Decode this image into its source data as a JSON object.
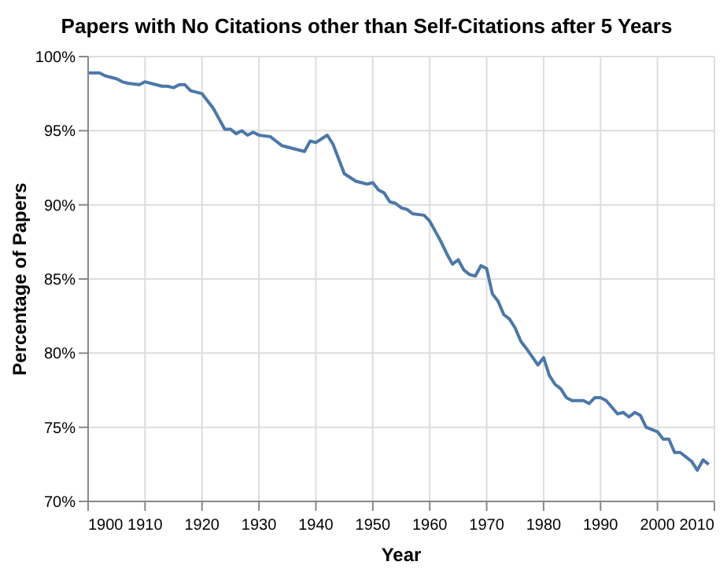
{
  "chart_data": {
    "type": "line",
    "title": "Papers with No Citations other than Self-Citations after 5 Years",
    "xlabel": "Year",
    "ylabel": "Percentage of Papers",
    "x": [
      1900,
      1902,
      1903,
      1905,
      1906,
      1907,
      1909,
      1910,
      1911,
      1913,
      1914,
      1915,
      1916,
      1917,
      1918,
      1920,
      1922,
      1924,
      1925,
      1926,
      1927,
      1928,
      1929,
      1930,
      1932,
      1933,
      1934,
      1936,
      1938,
      1939,
      1940,
      1942,
      1943,
      1945,
      1947,
      1949,
      1950,
      1951,
      1952,
      1953,
      1954,
      1955,
      1956,
      1957,
      1959,
      1960,
      1961,
      1962,
      1963,
      1964,
      1965,
      1966,
      1967,
      1968,
      1969,
      1970,
      1971,
      1972,
      1973,
      1974,
      1975,
      1976,
      1977,
      1979,
      1980,
      1981,
      1982,
      1983,
      1984,
      1985,
      1987,
      1988,
      1989,
      1990,
      1991,
      1993,
      1994,
      1995,
      1996,
      1997,
      1998,
      2000,
      2001,
      2002,
      2003,
      2004,
      2005,
      2006,
      2007,
      2008,
      2009
    ],
    "series": [
      {
        "color": "#4c78a8",
        "values": [
          98.9,
          98.9,
          98.7,
          98.5,
          98.3,
          98.2,
          98.1,
          98.3,
          98.2,
          98.0,
          98.0,
          97.9,
          98.1,
          98.1,
          97.7,
          97.5,
          96.5,
          95.1,
          95.1,
          94.8,
          95.0,
          94.7,
          94.9,
          94.7,
          94.6,
          94.3,
          94.0,
          93.8,
          93.6,
          94.3,
          94.2,
          94.7,
          94.1,
          92.1,
          91.6,
          91.4,
          91.5,
          91.0,
          90.8,
          90.2,
          90.1,
          89.8,
          89.7,
          89.4,
          89.3,
          88.9,
          88.2,
          87.5,
          86.7,
          86.0,
          86.3,
          85.6,
          85.3,
          85.2,
          85.9,
          85.7,
          84.0,
          83.5,
          82.6,
          82.3,
          81.7,
          80.8,
          80.3,
          79.2,
          79.7,
          78.5,
          77.9,
          77.6,
          77.0,
          76.8,
          76.8,
          76.6,
          77.0,
          77.0,
          76.8,
          75.9,
          76.0,
          75.7,
          76.0,
          75.8,
          75.0,
          74.7,
          74.2,
          74.2,
          73.3,
          73.3,
          73.0,
          72.7,
          72.1,
          72.8,
          72.5
        ]
      }
    ],
    "xlim": [
      1900,
      2010
    ],
    "xticks": [
      1900,
      1910,
      1920,
      1930,
      1940,
      1950,
      1960,
      1970,
      1980,
      1990,
      2000,
      2010
    ],
    "ylim": [
      70,
      100
    ],
    "yticks": [
      {
        "value": 70,
        "label": "70%"
      },
      {
        "value": 75,
        "label": "75%"
      },
      {
        "value": 80,
        "label": "80%"
      },
      {
        "value": 85,
        "label": "85%"
      },
      {
        "value": 90,
        "label": "90%"
      },
      {
        "value": 95,
        "label": "95%"
      },
      {
        "value": 100,
        "label": "100%"
      }
    ],
    "grid": true,
    "legend": false,
    "marker": "none",
    "line_style": "solid"
  }
}
